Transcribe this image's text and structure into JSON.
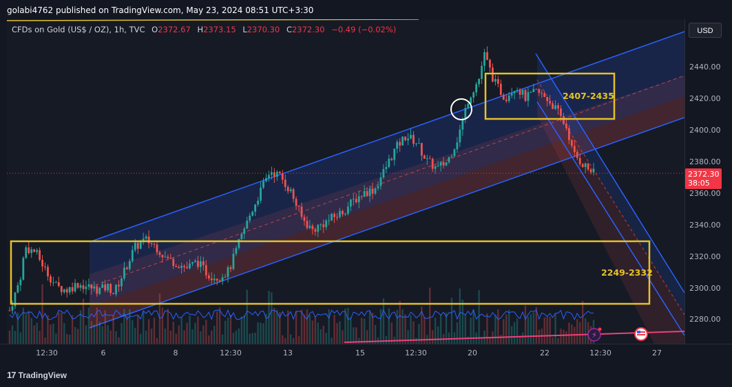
{
  "header": {
    "publisher_line": "golabi4762 published on TradingView.com, May 23, 2024 08:51 UTC+3:30"
  },
  "legend": {
    "symbol": "CFDs on Gold (US$ / OZ), 1h, TVC",
    "open_label": "O",
    "open_value": "2372.67",
    "high_label": "H",
    "high_value": "2373.15",
    "low_label": "L",
    "low_value": "2370.30",
    "close_label": "C",
    "close_value": "2372.30",
    "change": "−0.49 (−0.02%)"
  },
  "price_scale": {
    "currency": "USD",
    "current_price": "2372.30",
    "countdown": "38:05"
  },
  "zones": {
    "upper_label": "2407-2435",
    "lower_label": "2249-2332"
  },
  "footer": {
    "brand": "TradingView"
  },
  "colors": {
    "background": "#161a25",
    "up_candle": "#26a69a",
    "down_candle": "#ef5350",
    "channel_line": "#2962ff",
    "zone_box": "#e6c229",
    "price_tag": "#f23645"
  },
  "chart_data": {
    "type": "candlestick",
    "symbol": "CFDs on Gold (US$ / OZ)",
    "interval": "1h",
    "x_tick_labels": [
      "12:30",
      "6",
      "8",
      "12:30",
      "13",
      "15",
      "12:30",
      "20",
      "22",
      "12:30",
      "27"
    ],
    "y_tick_labels": [
      "2440.00",
      "2420.00",
      "2400.00",
      "2380.00",
      "2360.00",
      "2340.00",
      "2320.00",
      "2300.00",
      "2280.00"
    ],
    "ylim": [
      2265,
      2460
    ],
    "last_price": 2372.3,
    "price_path": [
      {
        "x": 0,
        "y": 2285
      },
      {
        "x": 2,
        "y": 2305
      },
      {
        "x": 3,
        "y": 2325
      },
      {
        "x": 5,
        "y": 2322
      },
      {
        "x": 7,
        "y": 2310
      },
      {
        "x": 9,
        "y": 2300
      },
      {
        "x": 11,
        "y": 2298
      },
      {
        "x": 13,
        "y": 2302
      },
      {
        "x": 15,
        "y": 2300
      },
      {
        "x": 17,
        "y": 2298
      },
      {
        "x": 19,
        "y": 2300
      },
      {
        "x": 20,
        "y": 2296
      },
      {
        "x": 22,
        "y": 2310
      },
      {
        "x": 24,
        "y": 2325
      },
      {
        "x": 26,
        "y": 2330
      },
      {
        "x": 28,
        "y": 2326
      },
      {
        "x": 30,
        "y": 2318
      },
      {
        "x": 32,
        "y": 2315
      },
      {
        "x": 34,
        "y": 2312
      },
      {
        "x": 36,
        "y": 2316
      },
      {
        "x": 38,
        "y": 2308
      },
      {
        "x": 40,
        "y": 2306
      },
      {
        "x": 42,
        "y": 2310
      },
      {
        "x": 44,
        "y": 2328
      },
      {
        "x": 46,
        "y": 2345
      },
      {
        "x": 48,
        "y": 2360
      },
      {
        "x": 50,
        "y": 2374
      },
      {
        "x": 52,
        "y": 2370
      },
      {
        "x": 54,
        "y": 2360
      },
      {
        "x": 56,
        "y": 2344
      },
      {
        "x": 58,
        "y": 2336
      },
      {
        "x": 60,
        "y": 2340
      },
      {
        "x": 62,
        "y": 2344
      },
      {
        "x": 64,
        "y": 2348
      },
      {
        "x": 66,
        "y": 2355
      },
      {
        "x": 68,
        "y": 2360
      },
      {
        "x": 70,
        "y": 2362
      },
      {
        "x": 72,
        "y": 2375
      },
      {
        "x": 74,
        "y": 2388
      },
      {
        "x": 76,
        "y": 2396
      },
      {
        "x": 78,
        "y": 2392
      },
      {
        "x": 80,
        "y": 2380
      },
      {
        "x": 82,
        "y": 2375
      },
      {
        "x": 84,
        "y": 2380
      },
      {
        "x": 86,
        "y": 2395
      },
      {
        "x": 88,
        "y": 2420
      },
      {
        "x": 90,
        "y": 2432
      },
      {
        "x": 91,
        "y": 2448
      },
      {
        "x": 93,
        "y": 2430
      },
      {
        "x": 95,
        "y": 2420
      },
      {
        "x": 97,
        "y": 2428
      },
      {
        "x": 99,
        "y": 2420
      },
      {
        "x": 101,
        "y": 2424
      },
      {
        "x": 103,
        "y": 2420
      },
      {
        "x": 105,
        "y": 2412
      },
      {
        "x": 107,
        "y": 2400
      },
      {
        "x": 108,
        "y": 2385
      },
      {
        "x": 110,
        "y": 2378
      },
      {
        "x": 112,
        "y": 2372
      }
    ]
  }
}
